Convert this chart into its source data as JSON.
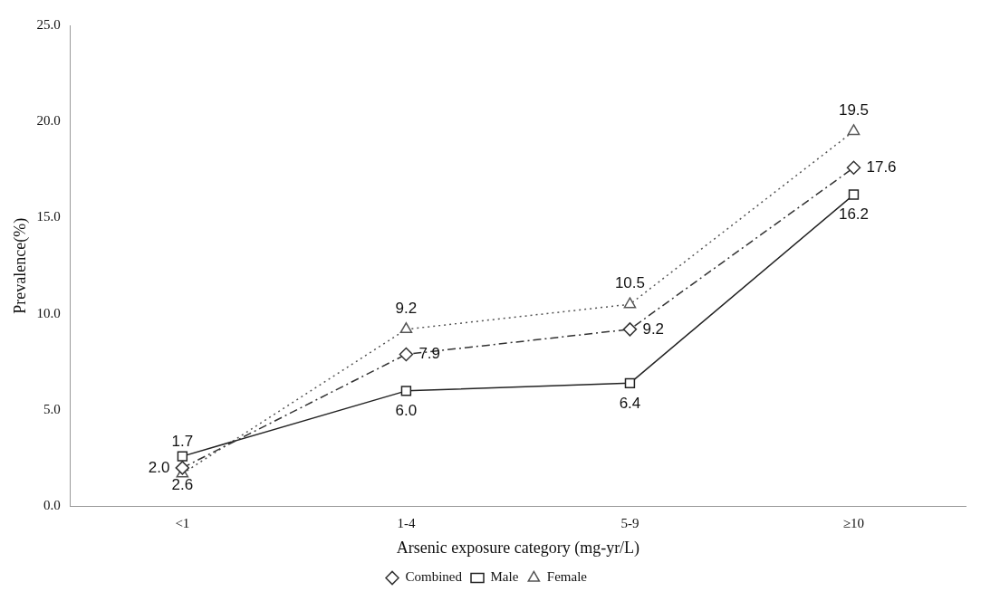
{
  "chart_data": {
    "type": "line",
    "xlabel": "Arsenic exposure category (mg-yr/L)",
    "ylabel": "Prevalence(%)",
    "categories": [
      "<1",
      "1-4",
      "5-9",
      "≥10"
    ],
    "ylim": [
      0,
      25
    ],
    "yticks": [
      {
        "value": 0,
        "label": "0.0"
      },
      {
        "value": 5,
        "label": "5.0"
      },
      {
        "value": 10,
        "label": "10.0"
      },
      {
        "value": 15,
        "label": "15.0"
      },
      {
        "value": 20,
        "label": "20.0"
      },
      {
        "value": 25,
        "label": "25.0"
      }
    ],
    "grid": false,
    "legend": "bottom",
    "series": [
      {
        "name": "Combined",
        "color": "#333333",
        "values": [
          2.0,
          7.9,
          9.2,
          17.6
        ],
        "value_labels": [
          "2.0",
          "7.9",
          "9.2",
          "17.6"
        ],
        "marker": "diamond",
        "line_style": "dashed"
      },
      {
        "name": "Male",
        "color": "#222222",
        "values": [
          2.6,
          6.0,
          6.4,
          16.2
        ],
        "value_labels": [
          "2.6",
          "6.0",
          "6.4",
          "16.2"
        ],
        "marker": "square",
        "line_style": "solid"
      },
      {
        "name": "Female",
        "color": "#555555",
        "values": [
          1.7,
          9.2,
          10.5,
          19.5
        ],
        "value_labels": [
          "1.7",
          "9.2",
          "10.5",
          "19.5"
        ],
        "marker": "triangle",
        "line_style": "dotted"
      }
    ]
  }
}
